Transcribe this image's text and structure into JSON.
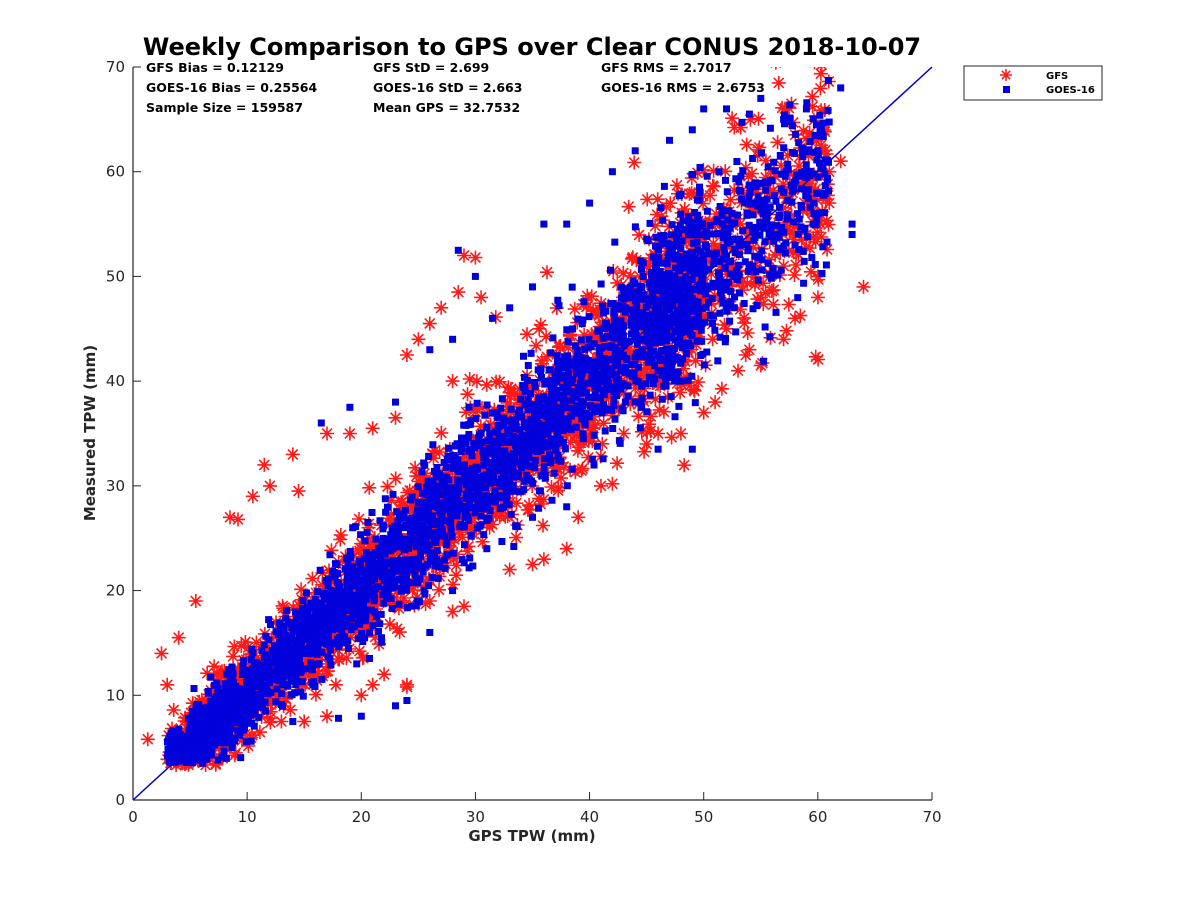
{
  "chart_data": {
    "type": "scatter",
    "title": "Weekly Comparison to GPS over Clear CONUS 2018-10-07",
    "xlabel": "GPS TPW (mm)",
    "ylabel": "Measured TPW (mm)",
    "xlim": [
      0,
      70
    ],
    "ylim": [
      0,
      70
    ],
    "xticks": [
      "0",
      "10",
      "20",
      "30",
      "40",
      "50",
      "60",
      "70"
    ],
    "yticks": [
      "0",
      "10",
      "20",
      "30",
      "40",
      "50",
      "60",
      "70"
    ],
    "grid": false,
    "legend_position": "outside-top-right",
    "reference_line": {
      "label": "1:1 line",
      "x": [
        0,
        70
      ],
      "y": [
        0,
        70
      ],
      "color": "#0000cc"
    },
    "stats": [
      "GFS Bias = 0.12129",
      "GFS StD = 2.699",
      "GFS RMS = 2.7017",
      "GOES-16 Bias = 0.25564",
      "GOES-16 StD = 2.663",
      "GOES-16 RMS = 2.6753",
      "Sample Size = 159587",
      "Mean GPS = 32.7532"
    ],
    "series": [
      {
        "name": "GFS",
        "marker": "asterisk",
        "color": "#ff1a1a",
        "bias": 0.12129,
        "std": 2.699,
        "rms": 2.7017,
        "range_x": [
          1,
          64
        ],
        "outliers": [
          [
            1.3,
            5.8
          ],
          [
            2.5,
            14
          ],
          [
            3,
            11
          ],
          [
            4,
            15.5
          ],
          [
            5.5,
            19
          ],
          [
            8.5,
            27
          ],
          [
            9.2,
            26.8
          ],
          [
            10.5,
            29
          ],
          [
            11.5,
            32
          ],
          [
            12,
            30
          ],
          [
            14,
            33
          ],
          [
            14.5,
            29.5
          ],
          [
            17,
            35
          ],
          [
            19,
            35
          ],
          [
            21,
            35.5
          ],
          [
            23,
            36.5
          ],
          [
            24,
            42.5
          ],
          [
            25,
            44
          ],
          [
            26,
            45.5
          ],
          [
            27,
            47
          ],
          [
            28.5,
            48.5
          ],
          [
            29,
            52
          ],
          [
            30,
            51.8
          ],
          [
            30.5,
            48
          ],
          [
            28,
            40
          ],
          [
            29.5,
            40.2
          ],
          [
            41,
            30
          ],
          [
            42,
            30.2
          ],
          [
            43,
            35
          ],
          [
            45,
            34
          ],
          [
            46,
            35
          ],
          [
            48,
            35
          ],
          [
            50,
            37
          ],
          [
            51,
            38
          ],
          [
            53,
            41
          ],
          [
            54,
            43
          ],
          [
            55,
            41.5
          ],
          [
            57,
            44
          ],
          [
            58,
            46
          ],
          [
            60,
            48
          ],
          [
            60,
            50
          ],
          [
            61,
            57
          ],
          [
            62,
            61
          ],
          [
            64,
            49
          ],
          [
            61,
            60
          ],
          [
            59,
            54
          ],
          [
            60,
            56
          ],
          [
            52,
            45
          ],
          [
            55,
            48
          ],
          [
            57,
            51
          ],
          [
            13,
            7.5
          ],
          [
            15,
            7.5
          ],
          [
            17,
            8
          ],
          [
            21,
            11
          ],
          [
            22,
            12
          ],
          [
            24,
            11
          ],
          [
            24,
            10.8
          ],
          [
            20,
            10
          ],
          [
            6,
            4
          ],
          [
            9,
            4.5
          ],
          [
            36,
            23
          ],
          [
            38,
            24
          ],
          [
            39,
            27
          ],
          [
            26,
            19
          ],
          [
            28,
            18
          ],
          [
            29,
            18.5
          ],
          [
            33,
            22
          ],
          [
            35,
            22.5
          ]
        ]
      },
      {
        "name": "GOES-16",
        "marker": "square",
        "color": "#0000dd",
        "bias": 0.25564,
        "std": 2.663,
        "rms": 2.6753,
        "range_x": [
          1,
          64
        ],
        "outliers": [
          [
            16.5,
            36
          ],
          [
            19,
            37.5
          ],
          [
            23,
            38
          ],
          [
            26,
            43
          ],
          [
            28,
            44
          ],
          [
            28.5,
            52.5
          ],
          [
            30,
            50
          ],
          [
            31.5,
            46
          ],
          [
            33,
            47
          ],
          [
            35,
            49
          ],
          [
            36,
            55
          ],
          [
            38,
            55
          ],
          [
            40,
            57
          ],
          [
            42,
            60
          ],
          [
            44,
            62
          ],
          [
            47,
            63
          ],
          [
            49,
            64
          ],
          [
            50,
            66
          ],
          [
            52,
            66
          ],
          [
            54,
            65.5
          ],
          [
            55,
            67
          ],
          [
            57,
            65
          ],
          [
            59,
            66
          ],
          [
            60,
            62
          ],
          [
            62,
            68
          ],
          [
            63,
            55
          ],
          [
            63,
            54
          ],
          [
            60,
            56
          ],
          [
            58,
            53
          ],
          [
            23,
            9
          ],
          [
            24,
            9.5
          ],
          [
            20,
            8
          ],
          [
            18,
            7.8
          ],
          [
            14,
            7.5
          ],
          [
            46,
            41
          ],
          [
            48,
            40
          ],
          [
            44,
            38
          ],
          [
            46,
            33.5
          ],
          [
            49,
            33.5
          ],
          [
            38,
            28
          ],
          [
            35,
            27
          ],
          [
            31,
            24
          ],
          [
            28,
            20
          ],
          [
            26,
            16
          ]
        ]
      }
    ]
  },
  "legend": {
    "items": [
      {
        "label": "GFS",
        "color": "#ff1a1a",
        "marker": "asterisk"
      },
      {
        "label": "GOES-16",
        "color": "#0000dd",
        "marker": "square"
      }
    ]
  }
}
